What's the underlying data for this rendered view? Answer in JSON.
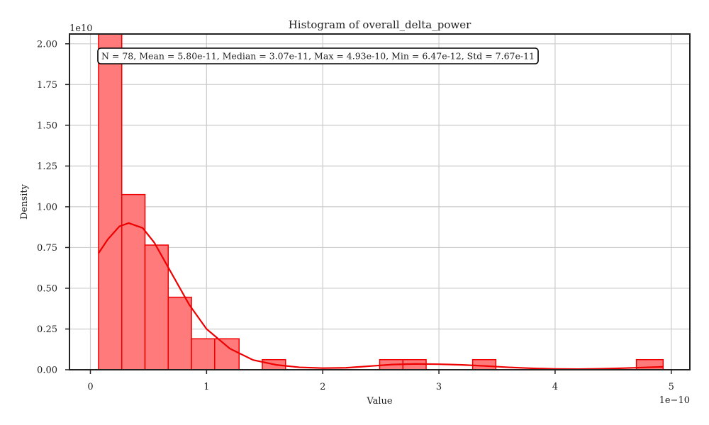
{
  "chart_data": {
    "type": "histogram",
    "title": "Histogram of overall_delta_power",
    "xlabel": "Value",
    "ylabel": "Density",
    "x_offset_label": "1e−10",
    "y_offset_label": "1e10",
    "xlim": [
      -0.18,
      5.16
    ],
    "ylim": [
      0,
      2.06
    ],
    "x_ticks": [
      0,
      1,
      2,
      3,
      4,
      5
    ],
    "x_tick_labels": [
      "0",
      "1",
      "2",
      "3",
      "4",
      "5"
    ],
    "y_ticks": [
      0,
      0.25,
      0.5,
      0.75,
      1.0,
      1.25,
      1.5,
      1.75,
      2.0
    ],
    "y_tick_labels": [
      "0.00",
      "0.25",
      "0.50",
      "0.75",
      "1.00",
      "1.25",
      "1.50",
      "1.75",
      "2.00"
    ],
    "grid": true,
    "bins": [
      {
        "x0": 0.07,
        "x1": 0.27,
        "density": 2.06
      },
      {
        "x0": 0.27,
        "x1": 0.47,
        "density": 1.075
      },
      {
        "x0": 0.47,
        "x1": 0.67,
        "density": 0.765
      },
      {
        "x0": 0.67,
        "x1": 0.87,
        "density": 0.445
      },
      {
        "x0": 0.87,
        "x1": 1.07,
        "density": 0.19
      },
      {
        "x0": 1.07,
        "x1": 1.28,
        "density": 0.19
      },
      {
        "x0": 1.28,
        "x1": 1.48,
        "density": 0
      },
      {
        "x0": 1.48,
        "x1": 1.68,
        "density": 0.062
      },
      {
        "x0": 1.68,
        "x1": 1.88,
        "density": 0
      },
      {
        "x0": 1.88,
        "x1": 2.08,
        "density": 0
      },
      {
        "x0": 2.08,
        "x1": 2.28,
        "density": 0
      },
      {
        "x0": 2.28,
        "x1": 2.49,
        "density": 0
      },
      {
        "x0": 2.49,
        "x1": 2.69,
        "density": 0.062
      },
      {
        "x0": 2.69,
        "x1": 2.89,
        "density": 0.062
      },
      {
        "x0": 2.89,
        "x1": 3.09,
        "density": 0
      },
      {
        "x0": 3.09,
        "x1": 3.29,
        "density": 0
      },
      {
        "x0": 3.29,
        "x1": 3.49,
        "density": 0.062
      },
      {
        "x0": 3.49,
        "x1": 3.69,
        "density": 0
      },
      {
        "x0": 3.69,
        "x1": 3.89,
        "density": 0
      },
      {
        "x0": 3.89,
        "x1": 4.1,
        "density": 0
      },
      {
        "x0": 4.1,
        "x1": 4.3,
        "density": 0
      },
      {
        "x0": 4.3,
        "x1": 4.5,
        "density": 0
      },
      {
        "x0": 4.5,
        "x1": 4.7,
        "density": 0
      },
      {
        "x0": 4.7,
        "x1": 4.93,
        "density": 0.062
      }
    ],
    "kde": {
      "x": [
        0.07,
        0.15,
        0.25,
        0.33,
        0.45,
        0.55,
        0.7,
        0.85,
        1.0,
        1.2,
        1.4,
        1.6,
        1.8,
        2.0,
        2.2,
        2.4,
        2.6,
        2.8,
        3.0,
        3.2,
        3.4,
        3.6,
        3.8,
        4.0,
        4.2,
        4.4,
        4.6,
        4.8,
        4.93
      ],
      "y": [
        0.715,
        0.8,
        0.88,
        0.9,
        0.87,
        0.78,
        0.59,
        0.4,
        0.25,
        0.13,
        0.06,
        0.03,
        0.015,
        0.01,
        0.012,
        0.022,
        0.032,
        0.036,
        0.034,
        0.03,
        0.023,
        0.015,
        0.009,
        0.005,
        0.004,
        0.006,
        0.01,
        0.015,
        0.018
      ]
    },
    "colors": {
      "fill": "#ff7a7a",
      "edge": "#ee0000",
      "kde": "#ee0000",
      "grid": "#cccccc",
      "axes": "#222222"
    },
    "stats_box": "N = 78, Mean = 5.80e-11, Median = 3.07e-11, Max = 4.93e-10, Min = 6.47e-12, Std = 7.67e-11"
  }
}
